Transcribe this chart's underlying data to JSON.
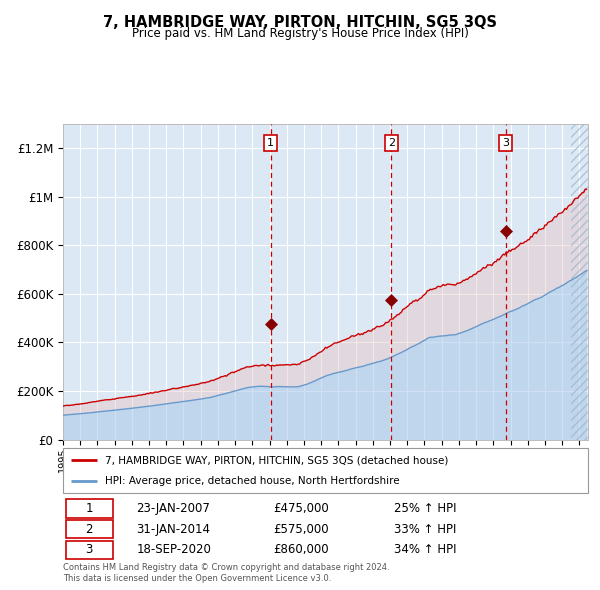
{
  "title": "7, HAMBRIDGE WAY, PIRTON, HITCHIN, SG5 3QS",
  "subtitle": "Price paid vs. HM Land Registry's House Price Index (HPI)",
  "legend_line1": "7, HAMBRIDGE WAY, PIRTON, HITCHIN, SG5 3QS (detached house)",
  "legend_line2": "HPI: Average price, detached house, North Hertfordshire",
  "footer1": "Contains HM Land Registry data © Crown copyright and database right 2024.",
  "footer2": "This data is licensed under the Open Government Licence v3.0.",
  "sale_labels": [
    "1",
    "2",
    "3"
  ],
  "sale_dates": [
    "23-JAN-2007",
    "31-JAN-2014",
    "18-SEP-2020"
  ],
  "sale_prices": [
    475000,
    575000,
    860000
  ],
  "sale_hpi": [
    "25% ↑ HPI",
    "33% ↑ HPI",
    "34% ↑ HPI"
  ],
  "sale_years": [
    2007.06,
    2014.08,
    2020.72
  ],
  "ylim": [
    0,
    1300000
  ],
  "xlim_start": 1995.0,
  "xlim_end": 2025.5,
  "red_line_color": "#cc0000",
  "blue_line_color": "#6699cc",
  "grid_color": "#ffffff",
  "plot_bg": "#dce9f5"
}
